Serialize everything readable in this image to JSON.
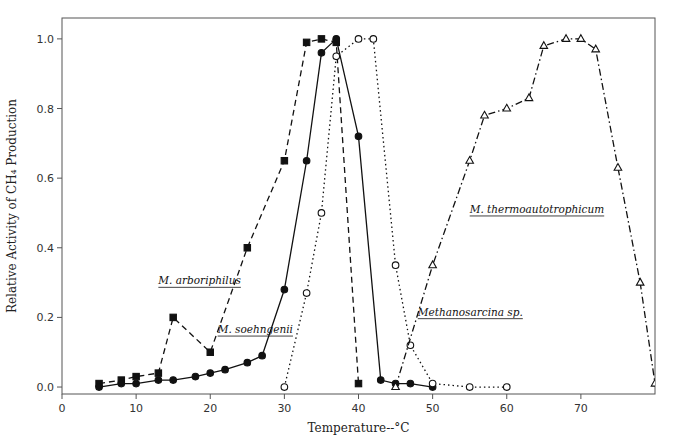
{
  "chart_data": {
    "type": "line",
    "x_label": "Temperature--°C",
    "y_label": "Relative Activity of CH₄ Production",
    "xlim": [
      0,
      80
    ],
    "ylim": [
      -0.02,
      1.06
    ],
    "xticks": [
      0,
      10,
      20,
      30,
      40,
      50,
      60,
      70
    ],
    "yticks": [
      {
        "value": 0,
        "label": "0.0"
      },
      0.2,
      0.4,
      0.6,
      0.8,
      {
        "value": 1,
        "label": "1.0"
      }
    ],
    "grid": false,
    "series": [
      {
        "x": [
          5,
          8,
          10,
          13,
          15,
          20,
          25,
          30,
          33,
          35,
          37,
          40
        ],
        "values": [
          0.01,
          0.02,
          0.03,
          0.04,
          0.2,
          0.1,
          0.4,
          0.65,
          0.99,
          1.0,
          0.99,
          0.01
        ],
        "color": "#111111",
        "marker": "square",
        "line_style": "dashed"
      },
      {
        "x": [
          5,
          8,
          10,
          13,
          15,
          18,
          20,
          22,
          25,
          27,
          30,
          33,
          35,
          37,
          40,
          43,
          45,
          47,
          50
        ],
        "values": [
          0.0,
          0.01,
          0.01,
          0.02,
          0.02,
          0.03,
          0.04,
          0.05,
          0.07,
          0.09,
          0.28,
          0.65,
          0.96,
          1.0,
          0.72,
          0.02,
          0.01,
          0.01,
          0.0
        ],
        "color": "#111111",
        "marker": "circle",
        "line_style": "solid"
      },
      {
        "x": [
          30,
          33,
          35,
          37,
          40,
          42,
          45,
          47,
          50,
          55,
          60
        ],
        "values": [
          0.0,
          0.27,
          0.5,
          0.95,
          1.0,
          1.0,
          0.35,
          0.12,
          0.01,
          0.0,
          0.0
        ],
        "color": "#111111",
        "marker": "open-circle",
        "line_style": "dotted"
      },
      {
        "x": [
          45,
          50,
          55,
          57,
          60,
          63,
          65,
          68,
          70,
          72,
          75,
          78,
          80
        ],
        "values": [
          0.0,
          0.35,
          0.65,
          0.78,
          0.8,
          0.83,
          0.98,
          1.0,
          1.0,
          0.97,
          0.63,
          0.3,
          0.01
        ],
        "color": "#111111",
        "marker": "open-triangle",
        "line_style": "dashdot"
      }
    ],
    "annotations": [
      {
        "text": "M. arboriphilus",
        "x": 13,
        "y": 0.295
      },
      {
        "text": "M. soehngenii",
        "x": 21,
        "y": 0.155
      },
      {
        "text": "Methanosarcina sp.",
        "x": 48,
        "y": 0.205
      },
      {
        "text": "M. thermoautotrophicum",
        "x": 55,
        "y": 0.5
      }
    ]
  }
}
